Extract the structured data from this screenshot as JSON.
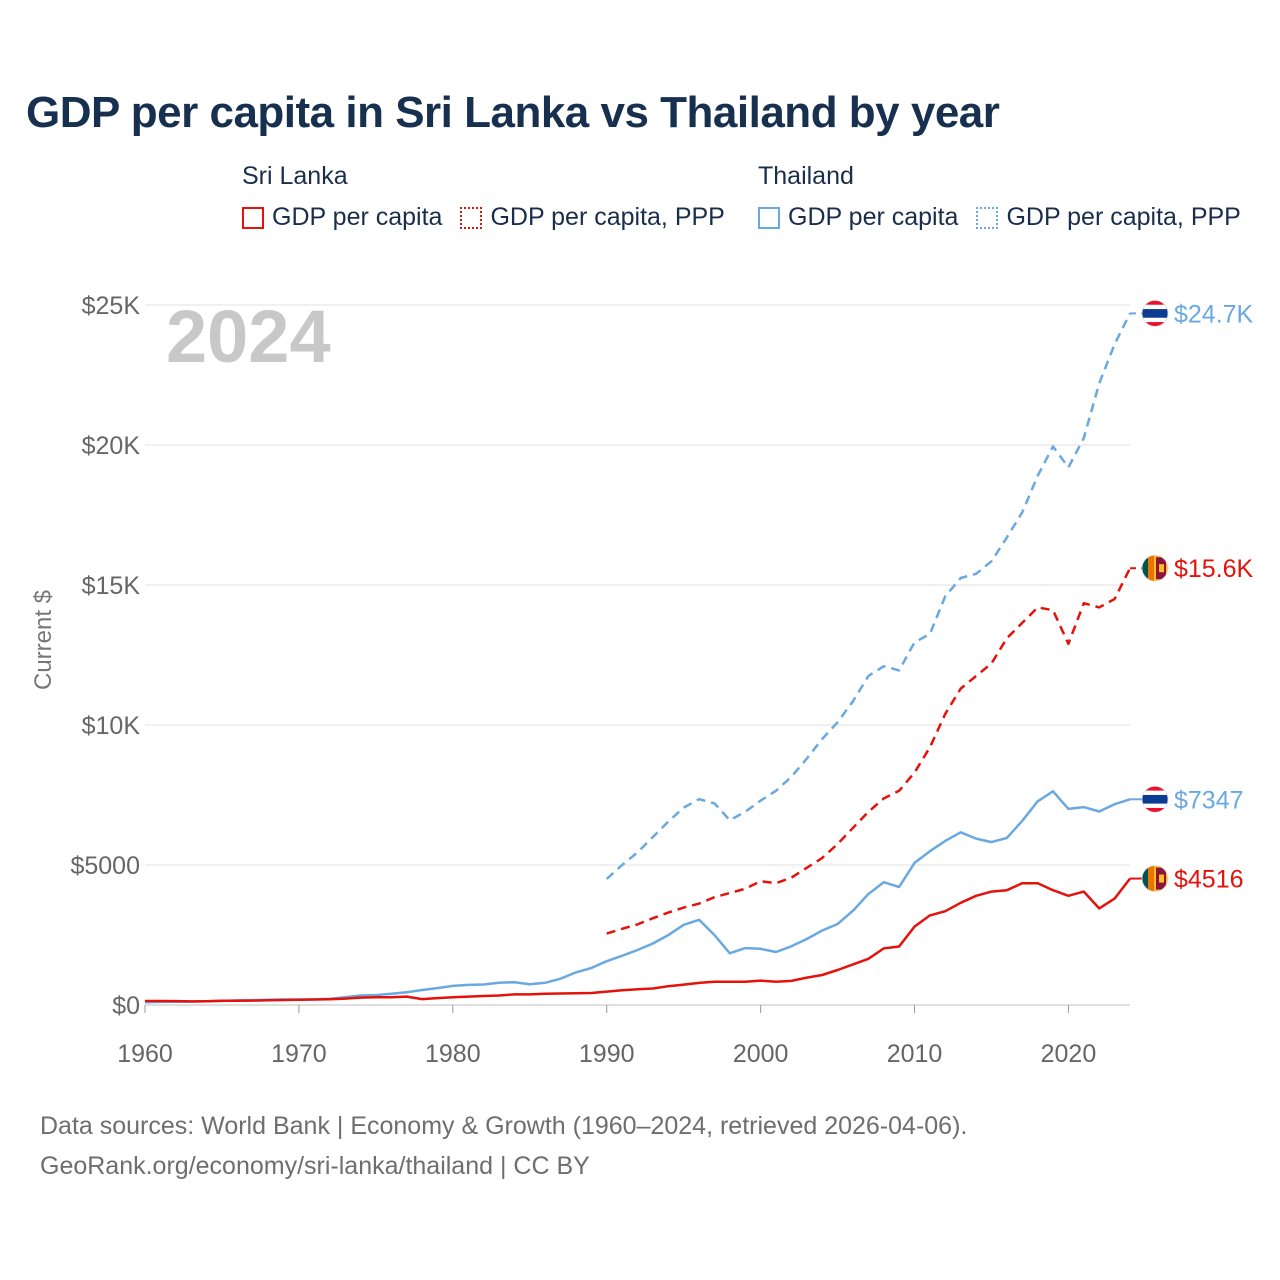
{
  "title": "GDP per capita in Sri Lanka vs Thailand by year",
  "legend": {
    "groups": [
      {
        "name": "Sri Lanka",
        "color": "#e3120b",
        "items": [
          {
            "label": "GDP per capita",
            "style": "solid"
          },
          {
            "label": "GDP per capita, PPP",
            "style": "dotted"
          }
        ]
      },
      {
        "name": "Thailand",
        "color": "#6aa9e0",
        "items": [
          {
            "label": "GDP per capita",
            "style": "solid"
          },
          {
            "label": "GDP per capita, PPP",
            "style": "dotted"
          }
        ]
      }
    ]
  },
  "footer": {
    "line1": "Data sources: World Bank | Economy & Growth (1960–2024, retrieved 2026-04-06).",
    "line2": "GeoRank.org/economy/sri-lanka/thailand | CC BY"
  },
  "chart_data": {
    "type": "line",
    "title": "GDP per capita in Sri Lanka vs Thailand by year",
    "xlabel": "",
    "ylabel": "Current $",
    "xlim": [
      1960,
      2024
    ],
    "ylim": [
      0,
      25000
    ],
    "year_label": "2024",
    "x_ticks": [
      1960,
      1970,
      1980,
      1990,
      2000,
      2010,
      2020
    ],
    "x_tick_labels": [
      "1960",
      "1970",
      "1980",
      "1990",
      "2000",
      "2010",
      "2020"
    ],
    "y_ticks": [
      0,
      5000,
      10000,
      15000,
      20000,
      25000
    ],
    "y_tick_labels": [
      "$0",
      "$5000",
      "$10K",
      "$15K",
      "$20K",
      "$25K"
    ],
    "grid": true,
    "series": [
      {
        "name": "Thailand GDP per capita, PPP",
        "country": "Thailand",
        "dash": "dashed",
        "color": "#6aa9e0",
        "flag": "thailand",
        "end_label": "$24.7K",
        "x": [
          1990,
          1991,
          1992,
          1993,
          1994,
          1995,
          1996,
          1997,
          1998,
          1999,
          2000,
          2001,
          2002,
          2003,
          2004,
          2005,
          2006,
          2007,
          2008,
          2009,
          2010,
          2011,
          2012,
          2013,
          2014,
          2015,
          2016,
          2017,
          2018,
          2019,
          2020,
          2021,
          2022,
          2023,
          2024
        ],
        "values": [
          4500,
          5000,
          5450,
          6000,
          6550,
          7050,
          7350,
          7200,
          6600,
          6900,
          7300,
          7650,
          8150,
          8800,
          9500,
          10100,
          10850,
          11750,
          12100,
          11950,
          12950,
          13250,
          14600,
          15250,
          15400,
          15850,
          16700,
          17600,
          18900,
          19950,
          19200,
          20250,
          22200,
          23600,
          24700
        ]
      },
      {
        "name": "Sri Lanka GDP per capita, PPP",
        "country": "Sri Lanka",
        "dash": "dashed",
        "color": "#e3120b",
        "flag": "sri-lanka",
        "end_label": "$15.6K",
        "x": [
          1990,
          1991,
          1992,
          1993,
          1994,
          1995,
          1996,
          1997,
          1998,
          1999,
          2000,
          2001,
          2002,
          2003,
          2004,
          2005,
          2006,
          2007,
          2008,
          2009,
          2010,
          2011,
          2012,
          2013,
          2014,
          2015,
          2016,
          2017,
          2018,
          2019,
          2020,
          2021,
          2022,
          2023,
          2024
        ],
        "values": [
          2550,
          2720,
          2880,
          3100,
          3300,
          3480,
          3620,
          3850,
          4000,
          4150,
          4420,
          4350,
          4550,
          4900,
          5250,
          5750,
          6330,
          6900,
          7380,
          7650,
          8300,
          9200,
          10400,
          11300,
          11750,
          12200,
          13100,
          13650,
          14200,
          14100,
          12900,
          14350,
          14200,
          14500,
          15600
        ]
      },
      {
        "name": "Thailand GDP per capita",
        "country": "Thailand",
        "dash": "solid",
        "color": "#6aa9e0",
        "flag": "thailand",
        "end_label": "$7347",
        "x": [
          1960,
          1961,
          1962,
          1963,
          1964,
          1965,
          1966,
          1967,
          1968,
          1969,
          1970,
          1971,
          1972,
          1973,
          1974,
          1975,
          1976,
          1977,
          1978,
          1979,
          1980,
          1981,
          1982,
          1983,
          1984,
          1985,
          1986,
          1987,
          1988,
          1989,
          1990,
          1991,
          1992,
          1993,
          1994,
          1995,
          1996,
          1997,
          1998,
          1999,
          2000,
          2001,
          2002,
          2003,
          2004,
          2005,
          2006,
          2007,
          2008,
          2009,
          2010,
          2011,
          2012,
          2013,
          2014,
          2015,
          2016,
          2017,
          2018,
          2019,
          2020,
          2021,
          2022,
          2023,
          2024
        ],
        "values": [
          101,
          110,
          118,
          123,
          131,
          143,
          166,
          175,
          187,
          196,
          197,
          199,
          219,
          275,
          339,
          353,
          400,
          454,
          537,
          605,
          683,
          719,
          731,
          797,
          813,
          742,
          792,
          938,
          1165,
          1322,
          1564,
          1758,
          1963,
          2197,
          2495,
          2865,
          3043,
          2498,
          1846,
          2032,
          2008,
          1893,
          2097,
          2358,
          2659,
          2894,
          3369,
          3963,
          4385,
          4213,
          5076,
          5492,
          5861,
          6168,
          5943,
          5817,
          5967,
          6579,
          7275,
          7632,
          7002,
          7067,
          6912,
          7172,
          7347
        ]
      },
      {
        "name": "Sri Lanka GDP per capita",
        "country": "Sri Lanka",
        "dash": "solid",
        "color": "#e3120b",
        "flag": "sri-lanka",
        "end_label": "$4516",
        "x": [
          1960,
          1961,
          1962,
          1963,
          1964,
          1965,
          1966,
          1967,
          1968,
          1969,
          1970,
          1971,
          1972,
          1973,
          1974,
          1975,
          1976,
          1977,
          1978,
          1979,
          1980,
          1981,
          1982,
          1983,
          1984,
          1985,
          1986,
          1987,
          1988,
          1989,
          1990,
          1991,
          1992,
          1993,
          1994,
          1995,
          1996,
          1997,
          1998,
          1999,
          2000,
          2001,
          2002,
          2003,
          2004,
          2005,
          2006,
          2007,
          2008,
          2009,
          2010,
          2011,
          2012,
          2013,
          2014,
          2015,
          2016,
          2017,
          2018,
          2019,
          2020,
          2021,
          2022,
          2023,
          2024
        ],
        "values": [
          143,
          144,
          140,
          130,
          135,
          150,
          152,
          158,
          167,
          177,
          190,
          196,
          207,
          230,
          266,
          280,
          276,
          300,
          210,
          245,
          280,
          300,
          320,
          340,
          380,
          380,
          400,
          410,
          420,
          430,
          480,
          530,
          560,
          590,
          670,
          730,
          790,
          830,
          830,
          830,
          870,
          830,
          860,
          980,
          1070,
          1250,
          1450,
          1650,
          2020,
          2090,
          2800,
          3200,
          3350,
          3650,
          3900,
          4050,
          4100,
          4350,
          4350,
          4100,
          3900,
          4050,
          3450,
          3800,
          4516
        ]
      }
    ]
  }
}
